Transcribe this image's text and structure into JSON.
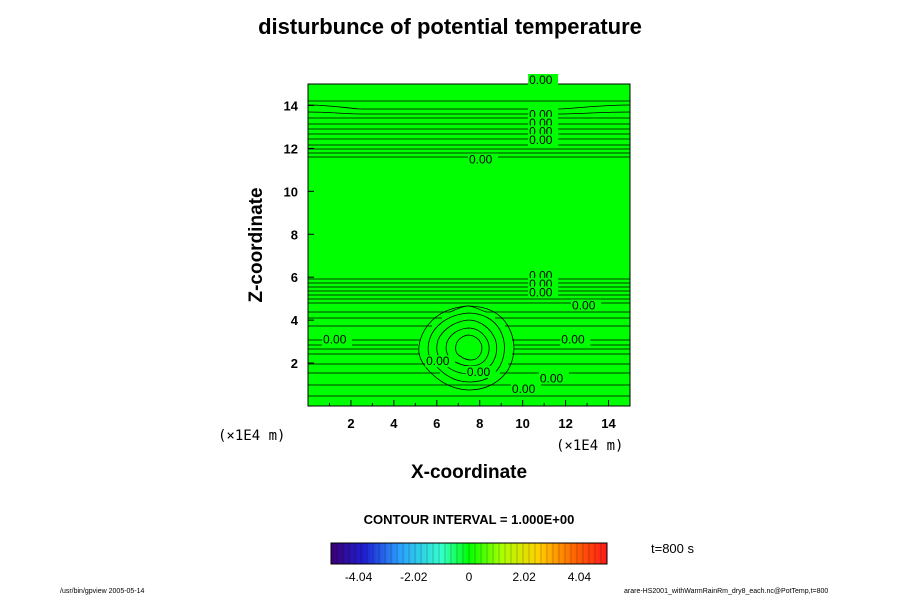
{
  "chart_data": {
    "type": "contour",
    "title": "disturbunce of potential temperature",
    "xlabel": "X-coordinate",
    "ylabel": "Z-coordinate",
    "x_unit": "(×1E4 m)",
    "z_unit": "(×1E4 m)",
    "xlim": [
      0,
      15
    ],
    "ylim": [
      0,
      15
    ],
    "xticks": [
      "2",
      "4",
      "6",
      "8",
      "10",
      "12",
      "14"
    ],
    "yticks": [
      "2",
      "4",
      "6",
      "8",
      "10",
      "12",
      "14"
    ],
    "fill_color": "#00ff00",
    "contour_interval_text": "CONTOUR INTERVAL = 1.000E+00",
    "contour_labels": [
      {
        "text": "0.00",
        "x": 10.3,
        "z": 15.0
      },
      {
        "text": "0.00",
        "x": 10.3,
        "z": 13.4
      },
      {
        "text": "0.00",
        "x": 10.3,
        "z": 13.0
      },
      {
        "text": "0.00",
        "x": 10.3,
        "z": 12.6
      },
      {
        "text": "0.00",
        "x": 10.3,
        "z": 12.2
      },
      {
        "text": "0.00",
        "x": 7.5,
        "z": 11.3
      },
      {
        "text": "0.00",
        "x": 10.3,
        "z": 5.9
      },
      {
        "text": "0.00",
        "x": 10.3,
        "z": 5.5
      },
      {
        "text": "0.00",
        "x": 10.3,
        "z": 5.1
      },
      {
        "text": "0.00",
        "x": 12.3,
        "z": 4.5
      },
      {
        "text": "0.00",
        "x": 0.7,
        "z": 2.9
      },
      {
        "text": "0.00",
        "x": 11.8,
        "z": 2.9
      },
      {
        "text": "0.00",
        "x": 5.5,
        "z": 1.9
      },
      {
        "text": "0.00",
        "x": 7.4,
        "z": 1.4
      },
      {
        "text": "0.00",
        "x": 10.8,
        "z": 1.1
      },
      {
        "text": "0.00",
        "x": 9.5,
        "z": 0.6
      }
    ],
    "colorbar": {
      "ticks": [
        "-4.04",
        "-2.02",
        "0",
        "2.02",
        "4.04"
      ],
      "tick_values": [
        -4.04,
        -2.02,
        0,
        2.02,
        4.04
      ],
      "range": [
        -5.05,
        5.05
      ]
    }
  },
  "time_label": "t=800 s",
  "footer_left": "/usr/bin/gpview 2005-05-14",
  "footer_right": "arare-HS2001_withWarmRainRm_dry8_each.nc@PotTemp,t=800"
}
